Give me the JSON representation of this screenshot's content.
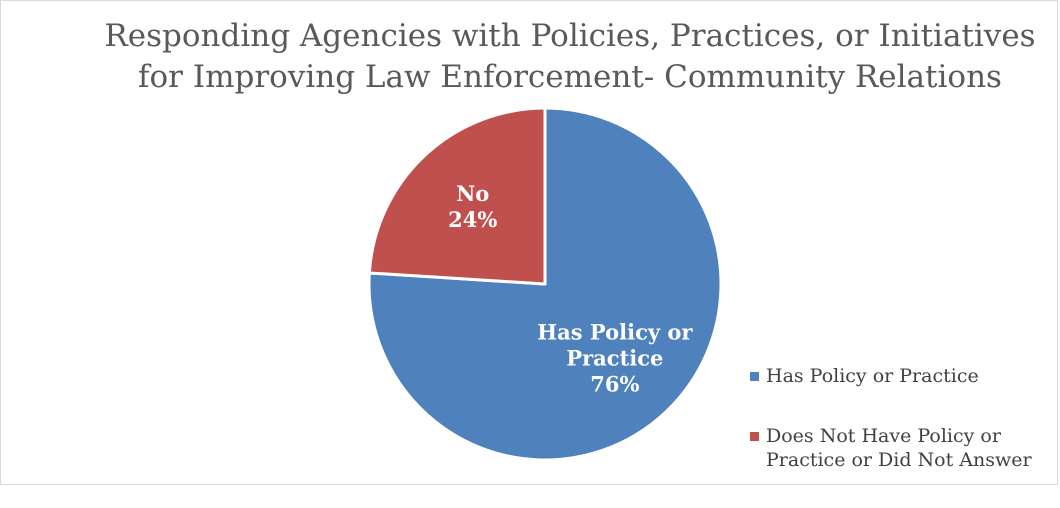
{
  "chart_data": {
    "type": "pie",
    "title": [
      "Responding Agencies with Policies, Practices, or Initiatives",
      "for Improving Law Enforcement- Community Relations"
    ],
    "slices": [
      {
        "label": "Has Policy or Practice",
        "data_label_lines": [
          "Has Policy or",
          "Practice",
          "76%"
        ],
        "value": 76,
        "color": "#4f81bd"
      },
      {
        "label": "Does Not Have Policy or Practice or Did Not Answer",
        "data_label_lines": [
          "No",
          "24%"
        ],
        "value": 24,
        "color": "#c0504d"
      }
    ],
    "legend": {
      "placement": "bottom-right",
      "items": [
        {
          "lines": [
            "Has Policy or Practice"
          ],
          "color": "#4f81bd"
        },
        {
          "lines": [
            "Does Not Have Policy or",
            "Practice or Did Not Answer"
          ],
          "color": "#c0504d"
        }
      ]
    },
    "start_angle_deg": 0,
    "direction": "clockwise"
  }
}
